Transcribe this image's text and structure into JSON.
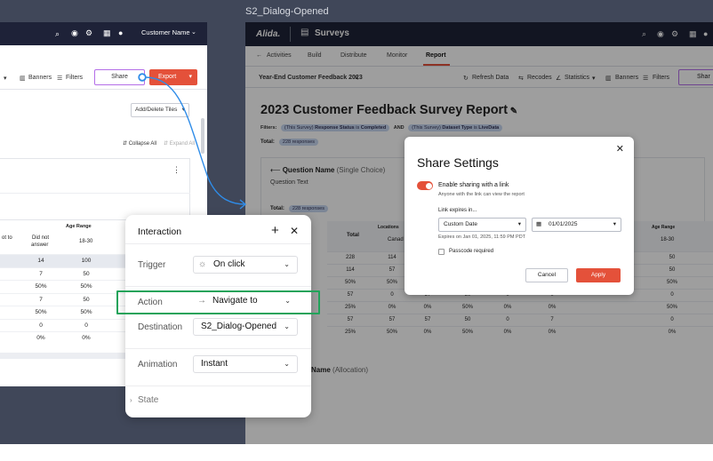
{
  "canvas": {
    "frame_label": "S2_Dialog-Opened"
  },
  "left_frame": {
    "user_label": "Customer Name",
    "toolbar": {
      "banners": "Banners",
      "filters": "Filters",
      "share": "Share",
      "export": "Export"
    },
    "add_delete_tiles": "Add/Delete Tiles",
    "collapse_all": "Collapse All",
    "expand_all": "Expand All",
    "table": {
      "age_range": "Age Range",
      "col_not_to": "ot to",
      "col_did_not": "Did not",
      "col_answer": "answer",
      "col_18_30": "18-30",
      "rows": [
        [
          "",
          "14",
          "100"
        ],
        [
          "",
          "7",
          "50"
        ],
        [
          "",
          "50%",
          "50%"
        ],
        [
          "",
          "7",
          "50"
        ],
        [
          "",
          "50%",
          "50%"
        ],
        [
          "",
          "0",
          "0"
        ],
        [
          "",
          "0%",
          "0%"
        ]
      ]
    }
  },
  "right_frame": {
    "brand": "Alida.",
    "app_title": "Surveys",
    "nav": {
      "activities": "Activities",
      "build": "Build",
      "distribute": "Distribute",
      "monitor": "Monitor",
      "report": "Report"
    },
    "toolbar": {
      "survey_name": "Year-End Customer Feedback 2023",
      "refresh": "Refresh Data",
      "recodes": "Recodes",
      "statistics": "Statistics",
      "banners": "Banners",
      "filters": "Filters",
      "share": "Shar"
    },
    "report_title": "2023 Customer Feedback Survey Report",
    "filters_line": {
      "label": "Filters:",
      "f1_scope": "(This Survey)",
      "f1_text": "Response Status",
      "f1_is": "is",
      "f1_value": "Completed",
      "and": "AND",
      "f2_scope": "(This Survey)",
      "f2_text": "Dataset Type",
      "f2_is": "is",
      "f2_value": "LiveData"
    },
    "total_label": "Total:",
    "total_pill": "228 responses",
    "question": {
      "name": "Question Name",
      "type": "(Single Choice)",
      "text": "Question Text"
    },
    "total_pill_2": "228 responses",
    "bg_table": {
      "locations": "Locations",
      "age_range": "Age Range",
      "canada": "Canad",
      "a18_30": "18-30",
      "total": "Total",
      "totals": [
        "228",
        "114",
        "50%",
        "57",
        "25%",
        "57",
        "25%"
      ],
      "col2": [
        "114",
        "57",
        "50%",
        "0",
        "0%",
        "57",
        "50%"
      ],
      "col7": [
        "50",
        "50",
        "50%",
        "0",
        "50%",
        "0",
        "0%"
      ],
      "col3": [
        "",
        "",
        "",
        "57",
        "0%",
        "57",
        "0%"
      ],
      "col4": [
        "",
        "",
        "",
        "50",
        "50%",
        "50",
        "50%"
      ],
      "col5": [
        "",
        "",
        "",
        "0",
        "0%",
        "0",
        "0%"
      ],
      "col6": [
        "",
        "",
        "",
        "0",
        "0%",
        "7",
        "0%"
      ]
    },
    "question2": {
      "name": "Name",
      "type": "(Allocation)"
    }
  },
  "dialog": {
    "title": "Share Settings",
    "enable_label": "Enable sharing with a link",
    "enable_sub": "Anyone with the link can view the report",
    "expires_label": "Link expires in...",
    "expiry_type": "Custom Date",
    "date": "01/01/2025",
    "expires_on": "Expires on Jan 01, 2025, 11:59 PM PDT",
    "passcode": "Passcode required",
    "cancel": "Cancel",
    "apply": "Apply"
  },
  "interaction": {
    "title": "Interaction",
    "trigger_label": "Trigger",
    "trigger_value": "On click",
    "action_label": "Action",
    "action_value": "Navigate to",
    "destination_label": "Destination",
    "destination_value": "S2_Dialog-Opened",
    "animation_label": "Animation",
    "animation_value": "Instant",
    "state_label": "State"
  }
}
